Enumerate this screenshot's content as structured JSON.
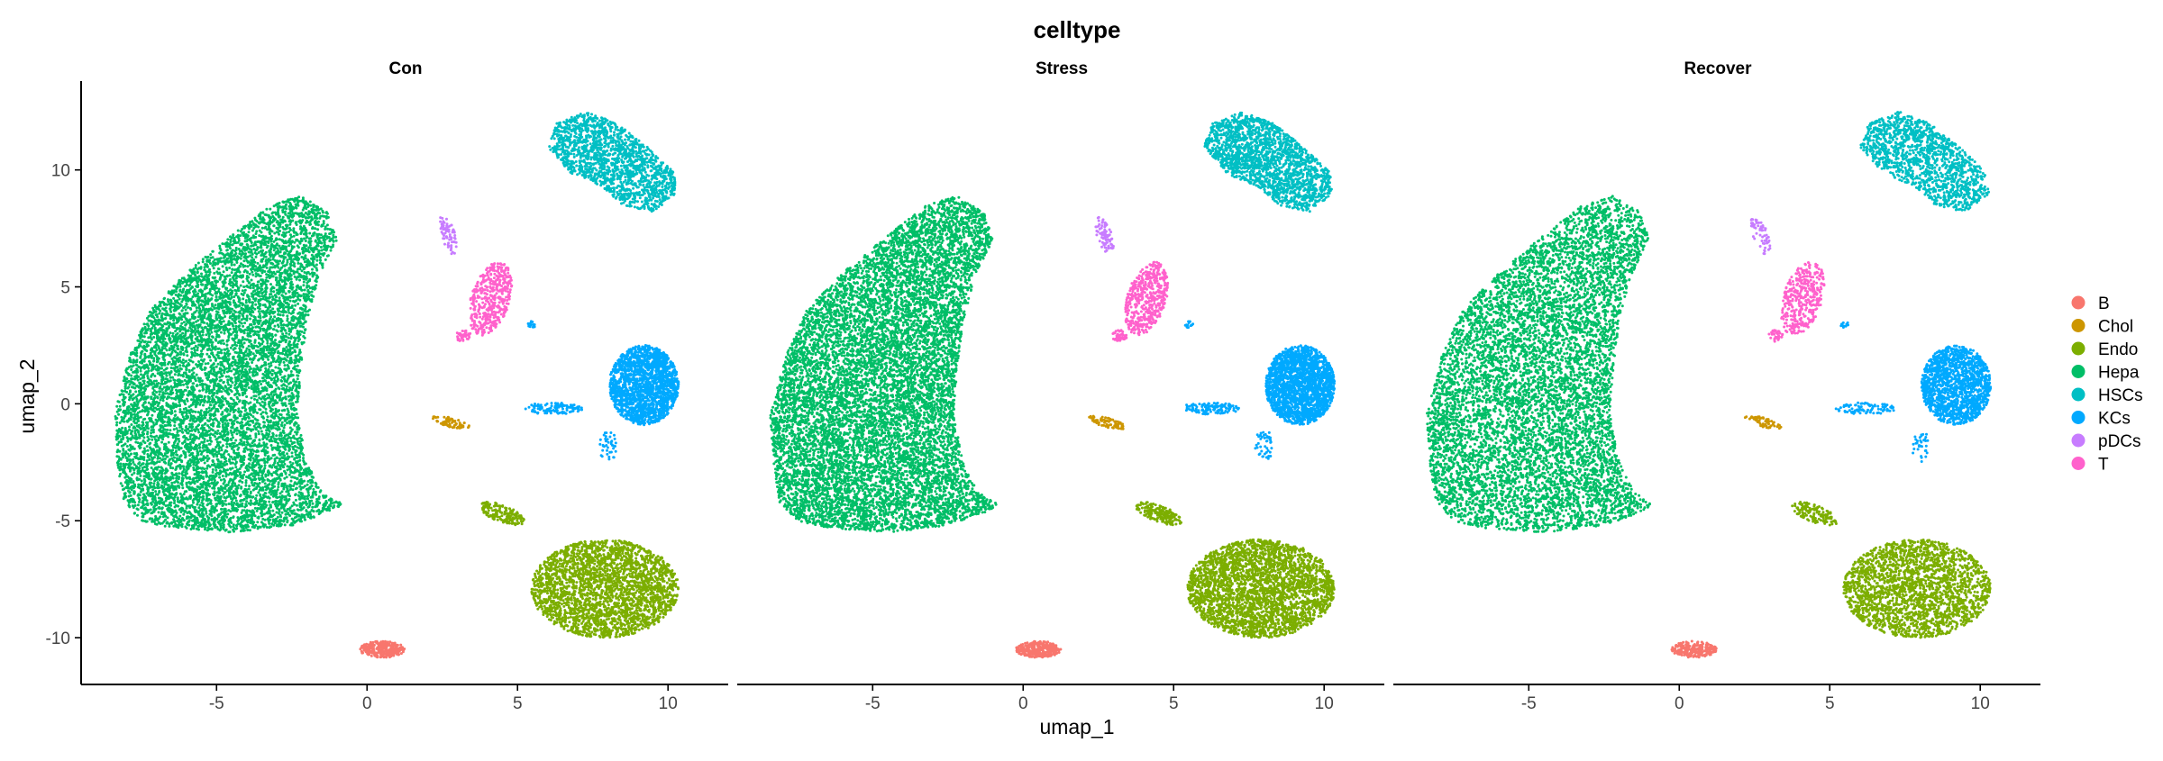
{
  "chart_data": {
    "type": "scatter",
    "title": "celltype",
    "xlabel": "umap_1",
    "ylabel": "umap_2",
    "xlim": [
      -9.5,
      12
    ],
    "ylim": [
      -12,
      13.8
    ],
    "xticks": [
      -5,
      0,
      5,
      10
    ],
    "yticks": [
      -10,
      -5,
      0,
      5,
      10
    ],
    "xtick_labels": [
      "-5",
      "0",
      "5",
      "10"
    ],
    "ytick_labels": [
      "-10",
      "-5",
      "0",
      "5",
      "10"
    ],
    "grid": false,
    "legend_position": "right",
    "facets": [
      "Con",
      "Stress",
      "Recover"
    ],
    "facet_density": [
      1.0,
      1.15,
      0.85
    ],
    "legend": [
      {
        "name": "B",
        "color": "#F8766D"
      },
      {
        "name": "Chol",
        "color": "#CD9600"
      },
      {
        "name": "Endo",
        "color": "#7CAE00"
      },
      {
        "name": "Hepa",
        "color": "#00BE67"
      },
      {
        "name": "HSCs",
        "color": "#00BFC4"
      },
      {
        "name": "KCs",
        "color": "#00A9FF"
      },
      {
        "name": "pDCs",
        "color": "#C77CFF"
      },
      {
        "name": "T",
        "color": "#FF61CC"
      }
    ],
    "clusters": [
      {
        "name": "Hepa",
        "shape": "polygon",
        "n": 9000,
        "polygon": [
          [
            -6.5,
            -5.3
          ],
          [
            -4.5,
            -5.5
          ],
          [
            -2.5,
            -5.2
          ],
          [
            -1.2,
            -4.6
          ],
          [
            -0.8,
            -4.3
          ],
          [
            -1.5,
            -3.8
          ],
          [
            -2.0,
            -2.5
          ],
          [
            -2.3,
            -0.5
          ],
          [
            -2.2,
            1.5
          ],
          [
            -2.0,
            3.5
          ],
          [
            -1.6,
            5.5
          ],
          [
            -1.0,
            7.0
          ],
          [
            -1.3,
            8.2
          ],
          [
            -2.2,
            8.9
          ],
          [
            -3.2,
            8.5
          ],
          [
            -4.5,
            7.2
          ],
          [
            -6.0,
            5.6
          ],
          [
            -7.2,
            4.0
          ],
          [
            -7.9,
            2.0
          ],
          [
            -8.4,
            -0.5
          ],
          [
            -8.3,
            -2.5
          ],
          [
            -8.1,
            -4.2
          ],
          [
            -7.5,
            -5.0
          ]
        ]
      },
      {
        "name": "HSCs",
        "shape": "polygon",
        "n": 1600,
        "polygon": [
          [
            6.0,
            11.0
          ],
          [
            6.3,
            12.0
          ],
          [
            7.3,
            12.5
          ],
          [
            8.3,
            12.0
          ],
          [
            9.3,
            11.0
          ],
          [
            10.2,
            9.9
          ],
          [
            10.3,
            9.0
          ],
          [
            9.5,
            8.2
          ],
          [
            8.5,
            8.5
          ],
          [
            7.8,
            9.3
          ],
          [
            6.8,
            9.8
          ]
        ]
      },
      {
        "name": "KCs",
        "shape": "ellipse",
        "n": 1800,
        "cx": 9.2,
        "cy": 0.8,
        "rx": 1.15,
        "ry": 1.7
      },
      {
        "name": "KCs",
        "shape": "ellipse",
        "n": 110,
        "cx": 6.2,
        "cy": -0.2,
        "rx": 1.0,
        "ry": 0.25
      },
      {
        "name": "KCs",
        "shape": "ellipse",
        "n": 40,
        "cx": 8.0,
        "cy": -1.8,
        "rx": 0.3,
        "ry": 0.7
      },
      {
        "name": "KCs",
        "shape": "ellipse",
        "n": 12,
        "cx": 5.5,
        "cy": 3.4,
        "rx": 0.15,
        "ry": 0.15
      },
      {
        "name": "Endo",
        "shape": "ellipse",
        "n": 2600,
        "cx": 7.9,
        "cy": -7.9,
        "rx": 2.45,
        "ry": 2.1
      },
      {
        "name": "Endo",
        "shape": "ellipse",
        "n": 160,
        "cx": 4.5,
        "cy": -4.7,
        "rx": 0.85,
        "ry": 0.35,
        "angle": -28
      },
      {
        "name": "T",
        "shape": "ellipse",
        "n": 450,
        "cx": 4.1,
        "cy": 4.5,
        "rx": 0.65,
        "ry": 1.6,
        "angle": -12
      },
      {
        "name": "T",
        "shape": "ellipse",
        "n": 40,
        "cx": 3.2,
        "cy": 2.9,
        "rx": 0.25,
        "ry": 0.25
      },
      {
        "name": "pDCs",
        "shape": "ellipse",
        "n": 70,
        "cx": 2.7,
        "cy": 7.2,
        "rx": 0.25,
        "ry": 0.85,
        "angle": 15
      },
      {
        "name": "Chol",
        "shape": "ellipse",
        "n": 70,
        "cx": 2.8,
        "cy": -0.8,
        "rx": 0.65,
        "ry": 0.2,
        "angle": -20
      },
      {
        "name": "B",
        "shape": "ellipse",
        "n": 280,
        "cx": 0.5,
        "cy": -10.5,
        "rx": 0.75,
        "ry": 0.35
      }
    ]
  }
}
